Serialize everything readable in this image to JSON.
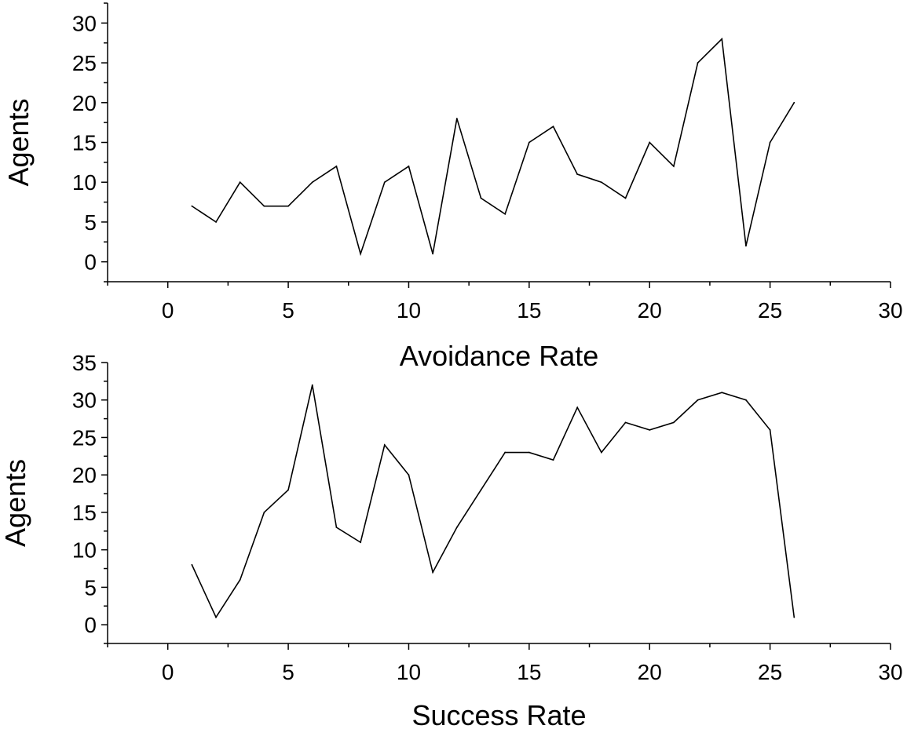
{
  "chart_data": [
    {
      "type": "line",
      "title": "",
      "xlabel": "Avoidance Rate",
      "ylabel": "Agents",
      "xlim": [
        -2.5,
        30
      ],
      "ylim": [
        -2.5,
        32.5
      ],
      "xticks": [
        0,
        5,
        10,
        15,
        20,
        25,
        30
      ],
      "xtick_labels": [
        "0",
        "5",
        "10",
        "15",
        "20",
        "25",
        "30"
      ],
      "yticks": [
        0,
        5,
        10,
        15,
        20,
        25,
        30
      ],
      "ytick_labels": [
        "0",
        "5",
        "10",
        "15",
        "20",
        "25",
        "30"
      ],
      "grid": false,
      "line_color": "#000000",
      "series": [
        {
          "name": "Agents",
          "x": [
            1,
            2,
            3,
            4,
            5,
            6,
            7,
            8,
            9,
            10,
            11,
            12,
            13,
            14,
            15,
            16,
            17,
            18,
            19,
            20,
            21,
            22,
            23,
            24,
            25,
            26
          ],
          "values": [
            7,
            5,
            10,
            7,
            7,
            10,
            12,
            1,
            10,
            12,
            1,
            18,
            8,
            6,
            15,
            17,
            11,
            10,
            8,
            15,
            12,
            25,
            28,
            2,
            15,
            20
          ]
        }
      ]
    },
    {
      "type": "line",
      "title": "",
      "xlabel": "Success Rate",
      "ylabel": "Agents",
      "xlim": [
        -2.5,
        30
      ],
      "ylim": [
        -2.5,
        35
      ],
      "xticks": [
        0,
        5,
        10,
        15,
        20,
        25,
        30
      ],
      "xtick_labels": [
        "0",
        "5",
        "10",
        "15",
        "20",
        "25",
        "30"
      ],
      "yticks": [
        0,
        5,
        10,
        15,
        20,
        25,
        30,
        35
      ],
      "ytick_labels": [
        "0",
        "5",
        "10",
        "15",
        "20",
        "25",
        "30",
        "35"
      ],
      "grid": false,
      "line_color": "#000000",
      "series": [
        {
          "name": "Agents",
          "x": [
            1,
            2,
            3,
            4,
            5,
            6,
            7,
            8,
            9,
            10,
            11,
            12,
            13,
            14,
            15,
            16,
            17,
            18,
            19,
            20,
            21,
            22,
            23,
            24,
            25,
            26
          ],
          "values": [
            8,
            1,
            6,
            15,
            18,
            32,
            13,
            11,
            24,
            20,
            7,
            13,
            18,
            23,
            23,
            22,
            29,
            23,
            27,
            26,
            27,
            30,
            31,
            30,
            26,
            1
          ]
        }
      ]
    }
  ]
}
